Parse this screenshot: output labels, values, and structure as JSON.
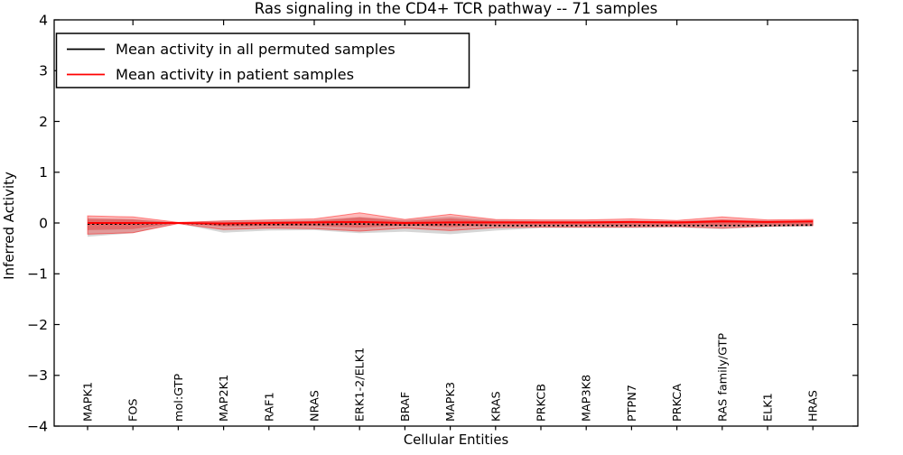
{
  "chart_data": {
    "type": "line",
    "title": "Ras signaling in the CD4+ TCR pathway -- 71 samples",
    "xlabel": "Cellular Entities",
    "ylabel": "Inferred Activity",
    "ylim": [
      -4,
      4
    ],
    "yticks": [
      4,
      3,
      2,
      1,
      0,
      -1,
      -2,
      -3,
      -4
    ],
    "grid": false,
    "categories": [
      "MAPK1",
      "FOS",
      "mol:GTP",
      "MAP2K1",
      "RAF1",
      "NRAS",
      "ERK1-2/ELK1",
      "BRAF",
      "MAPK3",
      "KRAS",
      "PRKCB",
      "MAP3K8",
      "PTPN7",
      "PRKCA",
      "RAS family/GTP",
      "ELK1",
      "HRAS"
    ],
    "series": [
      {
        "name": "Mean activity in all permuted samples",
        "color": "#000000",
        "style": "dashed",
        "values": [
          -0.02,
          -0.02,
          0.0,
          -0.03,
          -0.03,
          -0.03,
          -0.02,
          -0.04,
          -0.03,
          -0.05,
          -0.05,
          -0.05,
          -0.05,
          -0.05,
          -0.05,
          -0.05,
          -0.04
        ]
      },
      {
        "name": "Mean activity in patient samples",
        "color": "#ff0000",
        "style": "solid",
        "values": [
          0.0,
          0.0,
          0.0,
          -0.01,
          0.0,
          0.01,
          0.02,
          0.0,
          0.01,
          0.01,
          0.01,
          0.01,
          0.02,
          0.01,
          0.03,
          0.02,
          0.03
        ]
      }
    ],
    "bands": [
      {
        "name": "permuted-samples-std-band",
        "color": "#787878",
        "opacity": 0.3,
        "upper": [
          0.1,
          0.08,
          0.01,
          0.05,
          0.05,
          0.06,
          0.12,
          0.06,
          0.13,
          0.06,
          0.05,
          0.05,
          0.05,
          0.04,
          0.07,
          0.05,
          0.05
        ],
        "lower": [
          -0.27,
          -0.2,
          -0.01,
          -0.19,
          -0.15,
          -0.14,
          -0.2,
          -0.17,
          -0.22,
          -0.15,
          -0.1,
          -0.1,
          -0.1,
          -0.09,
          -0.12,
          -0.08,
          -0.07
        ]
      },
      {
        "name": "patient-samples-std-outer-band",
        "color": "#ff0000",
        "opacity": 0.28,
        "upper": [
          0.14,
          0.12,
          0.01,
          0.04,
          0.06,
          0.08,
          0.2,
          0.07,
          0.17,
          0.07,
          0.06,
          0.06,
          0.08,
          0.05,
          0.12,
          0.06,
          0.07
        ],
        "lower": [
          -0.22,
          -0.19,
          -0.01,
          -0.13,
          -0.1,
          -0.11,
          -0.16,
          -0.1,
          -0.15,
          -0.09,
          -0.08,
          -0.08,
          -0.08,
          -0.07,
          -0.1,
          -0.06,
          -0.05
        ]
      },
      {
        "name": "patient-samples-std-inner-band",
        "color": "#e60000",
        "opacity": 0.3,
        "upper": [
          0.08,
          0.07,
          0.005,
          0.02,
          0.03,
          0.04,
          0.11,
          0.04,
          0.09,
          0.04,
          0.03,
          0.03,
          0.04,
          0.03,
          0.07,
          0.03,
          0.04
        ],
        "lower": [
          -0.14,
          -0.12,
          -0.005,
          -0.07,
          -0.06,
          -0.06,
          -0.09,
          -0.05,
          -0.08,
          -0.05,
          -0.04,
          -0.04,
          -0.05,
          -0.04,
          -0.06,
          -0.03,
          -0.03
        ]
      }
    ],
    "legend": {
      "position": "upper-left",
      "entries": [
        {
          "label": "Mean activity in all permuted samples",
          "color": "#000000"
        },
        {
          "label": "Mean activity in patient samples",
          "color": "#ff0000"
        }
      ]
    }
  }
}
